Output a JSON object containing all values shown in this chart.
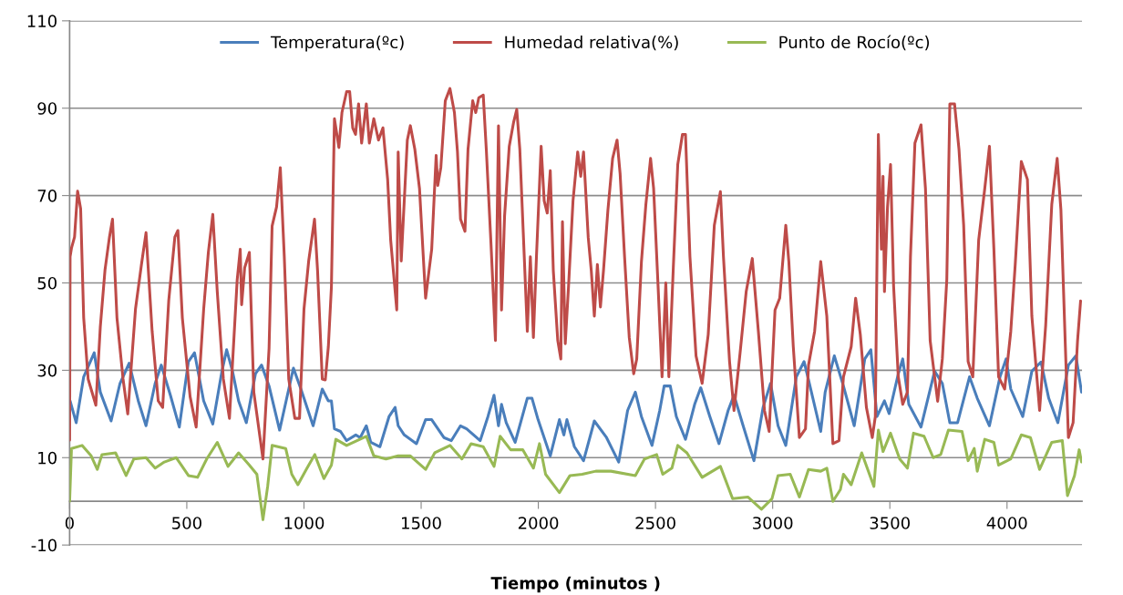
{
  "chart_data": {
    "type": "line",
    "xlabel": "Tiempo (minutos )",
    "xlim": [
      0,
      4320
    ],
    "xticks": [
      0,
      500,
      1000,
      1500,
      2000,
      2500,
      3000,
      3500,
      4000
    ],
    "ylim": [
      -10,
      110
    ],
    "yticks": [
      -10,
      10,
      30,
      50,
      70,
      90,
      110
    ],
    "grid": "y",
    "legend": "top",
    "marker": "none",
    "line_style": "solid",
    "series": [
      {
        "name": "Temperatura(ºc)",
        "color": "#4a7ebb",
        "x": [
          2,
          28,
          60,
          105,
          131,
          177,
          215,
          254,
          293,
          326,
          365,
          391,
          430,
          468,
          507,
          533,
          572,
          611,
          650,
          670,
          695,
          721,
          754,
          793,
          819,
          851,
          896,
          955,
          987,
          1039,
          1078,
          1104,
          1117,
          1130,
          1156,
          1182,
          1221,
          1240,
          1266,
          1285,
          1324,
          1363,
          1389,
          1402,
          1428,
          1480,
          1519,
          1545,
          1597,
          1629,
          1668,
          1694,
          1752,
          1785,
          1811,
          1830,
          1843,
          1863,
          1901,
          1953,
          1973,
          1999,
          2051,
          2090,
          2109,
          2122,
          2154,
          2193,
          2239,
          2291,
          2343,
          2381,
          2414,
          2440,
          2485,
          2518,
          2537,
          2563,
          2589,
          2628,
          2667,
          2693,
          2732,
          2771,
          2810,
          2835,
          2874,
          2920,
          2959,
          2991,
          3023,
          3056,
          3101,
          3134,
          3153,
          3205,
          3224,
          3263,
          3302,
          3348,
          3393,
          3419,
          3445,
          3477,
          3497,
          3536,
          3555,
          3581,
          3633,
          3691,
          3724,
          3756,
          3789,
          3840,
          3873,
          3925,
          3970,
          3996,
          4016,
          4067,
          4106,
          4145,
          4178,
          4217,
          4262,
          4294,
          4318
        ],
        "values": [
          23,
          18,
          28.5,
          34,
          25,
          18.4,
          27,
          31.6,
          23,
          17.3,
          27,
          31.2,
          24.3,
          17,
          32,
          34,
          23,
          17.7,
          29.8,
          34.7,
          29.8,
          23,
          18,
          29.2,
          31.2,
          26.4,
          16.3,
          30.5,
          25.7,
          17.3,
          25.7,
          23,
          23,
          16.6,
          16,
          13.9,
          15.2,
          14.6,
          17.3,
          13.5,
          12.5,
          19.4,
          21.5,
          17.3,
          15.2,
          13.2,
          18.7,
          18.7,
          14.6,
          13.9,
          17.3,
          16.6,
          13.9,
          19.4,
          24.3,
          17.3,
          22.2,
          18,
          13.5,
          23.6,
          23.6,
          18.7,
          10.4,
          18.7,
          15.2,
          18.7,
          12.5,
          9.3,
          18.4,
          14.6,
          9,
          20.8,
          25,
          19.4,
          12.8,
          20.8,
          26.4,
          26.4,
          19.4,
          14.2,
          22.2,
          26,
          19.4,
          13.2,
          20.8,
          24.3,
          17.3,
          9.3,
          21.5,
          27,
          17.3,
          12.8,
          28.5,
          32,
          27.8,
          16,
          25,
          33.3,
          26.4,
          17.3,
          32.6,
          34.7,
          19.4,
          23,
          20.1,
          29.2,
          32.6,
          22.2,
          17,
          29.8,
          27,
          18,
          18,
          28.5,
          23.6,
          17.3,
          28.5,
          32.6,
          25.7,
          19.4,
          29.8,
          31.9,
          23.6,
          18,
          31.2,
          33.3,
          25
        ]
      },
      {
        "name": "Humedad relativa(%)",
        "color": "#be4b48",
        "x": [
          0,
          2,
          8,
          21,
          34,
          47,
          60,
          79,
          112,
          131,
          151,
          170,
          183,
          202,
          228,
          248,
          281,
          306,
          326,
          352,
          378,
          397,
          423,
          449,
          462,
          481,
          514,
          540,
          572,
          592,
          611,
          630,
          656,
          682,
          715,
          728,
          734,
          747,
          767,
          786,
          825,
          851,
          864,
          883,
          899,
          916,
          935,
          961,
          981,
          1000,
          1020,
          1045,
          1058,
          1078,
          1091,
          1104,
          1117,
          1130,
          1149,
          1162,
          1182,
          1195,
          1208,
          1220,
          1233,
          1246,
          1266,
          1279,
          1298,
          1318,
          1337,
          1357,
          1370,
          1396,
          1402,
          1415,
          1441,
          1454,
          1473,
          1493,
          1519,
          1545,
          1564,
          1571,
          1584,
          1603,
          1623,
          1642,
          1655,
          1668,
          1687,
          1700,
          1720,
          1733,
          1746,
          1765,
          1778,
          1798,
          1817,
          1830,
          1843,
          1856,
          1876,
          1895,
          1908,
          1921,
          1940,
          1953,
          1966,
          1979,
          1992,
          2012,
          2025,
          2038,
          2051,
          2064,
          2083,
          2096,
          2103,
          2115,
          2129,
          2148,
          2168,
          2181,
          2193,
          2213,
          2226,
          2239,
          2252,
          2265,
          2278,
          2297,
          2317,
          2336,
          2349,
          2368,
          2388,
          2407,
          2420,
          2440,
          2459,
          2479,
          2492,
          2511,
          2528,
          2544,
          2557,
          2576,
          2595,
          2615,
          2628,
          2647,
          2673,
          2699,
          2725,
          2751,
          2777,
          2790,
          2816,
          2835,
          2861,
          2887,
          2913,
          2939,
          2965,
          2985,
          3010,
          3030,
          3056,
          3069,
          3088,
          3114,
          3140,
          3153,
          3179,
          3205,
          3231,
          3257,
          3283,
          3302,
          3335,
          3354,
          3374,
          3400,
          3425,
          3438,
          3451,
          3464,
          3471,
          3477,
          3490,
          3503,
          3516,
          3536,
          3555,
          3575,
          3588,
          3607,
          3633,
          3652,
          3672,
          3704,
          3724,
          3743,
          3756,
          3776,
          3795,
          3815,
          3834,
          3854,
          3879,
          3905,
          3925,
          3944,
          3964,
          3990,
          4016,
          4035,
          4061,
          4087,
          4106,
          4139,
          4165,
          4191,
          4214,
          4230,
          4249,
          4262,
          4282,
          4301,
          4314
        ],
        "values": [
          14,
          56,
          58,
          60.5,
          71,
          67,
          42,
          28,
          22,
          40,
          53,
          60.5,
          64.6,
          42,
          28,
          20,
          44,
          54,
          61.5,
          39,
          23,
          21.5,
          46,
          60.5,
          62,
          42,
          24,
          17,
          44,
          57,
          65.7,
          48,
          28,
          19,
          50.7,
          57.7,
          45,
          53.5,
          57,
          25,
          9.7,
          35,
          63,
          67.4,
          76.4,
          56,
          28,
          19,
          19,
          44,
          55,
          64.6,
          52.8,
          28,
          27.8,
          35.4,
          49,
          87.6,
          81,
          89,
          93.8,
          93.8,
          85.5,
          84,
          91,
          82,
          91,
          82,
          87.6,
          82.7,
          85.5,
          73.7,
          59.8,
          43.8,
          80,
          55,
          82.7,
          86,
          80.6,
          71.6,
          46.5,
          57.7,
          79.2,
          72.3,
          76.4,
          91.7,
          94.5,
          89,
          80,
          64.6,
          61.8,
          80.6,
          91.7,
          89,
          92.4,
          93,
          80.6,
          59,
          36.8,
          86,
          43.8,
          65.3,
          81.3,
          86.9,
          89.7,
          80.6,
          56,
          38.9,
          56,
          37.5,
          56,
          81.3,
          68.8,
          66,
          75.7,
          52.8,
          36.8,
          32.6,
          64,
          36.1,
          49.3,
          68.8,
          80,
          74.4,
          80,
          60.4,
          52.8,
          42.4,
          54.2,
          44.5,
          52.8,
          66.7,
          78.5,
          82.7,
          75,
          56,
          37.5,
          29.2,
          32.6,
          54.9,
          68,
          78.5,
          71.6,
          49.3,
          28.5,
          50,
          28.5,
          53.5,
          77.1,
          84,
          84,
          56,
          33.3,
          27,
          38.2,
          63.2,
          70.9,
          56,
          32,
          20.8,
          34,
          48,
          55.6,
          38.9,
          20.8,
          16,
          43.8,
          46.5,
          63.2,
          54.9,
          35.4,
          14.6,
          16.6,
          31.2,
          38.9,
          54.9,
          42.4,
          13.2,
          13.9,
          28.5,
          35.4,
          46.5,
          38.2,
          21.5,
          14.6,
          19.4,
          84,
          57.7,
          74.4,
          48,
          67.4,
          77.1,
          49.3,
          28.5,
          22.2,
          25,
          56,
          82,
          86.2,
          71.6,
          36.8,
          22.9,
          32.6,
          50.7,
          91,
          91,
          80.6,
          63.2,
          32,
          28.5,
          59.8,
          71.6,
          81.3,
          57.7,
          28.5,
          25.7,
          38.9,
          54.2,
          77.8,
          73.7,
          42.4,
          20.8,
          40.3,
          68,
          78.5,
          66.7,
          35.4,
          14.6,
          18,
          36.8,
          45.9
        ]
      },
      {
        "name": "Punto de Rocío(ºc)",
        "color": "#98b954",
        "x": [
          0,
          8,
          53,
          92,
          118,
          138,
          196,
          241,
          274,
          326,
          365,
          404,
          455,
          507,
          546,
          585,
          630,
          676,
          721,
          767,
          799,
          825,
          845,
          864,
          922,
          948,
          974,
          1013,
          1046,
          1085,
          1117,
          1136,
          1182,
          1266,
          1298,
          1350,
          1402,
          1454,
          1519,
          1558,
          1623,
          1674,
          1713,
          1765,
          1811,
          1837,
          1882,
          1934,
          1979,
          2005,
          2031,
          2090,
          2135,
          2187,
          2245,
          2310,
          2414,
          2453,
          2505,
          2531,
          2570,
          2595,
          2634,
          2699,
          2777,
          2829,
          2894,
          2952,
          2997,
          3023,
          3075,
          3114,
          3153,
          3205,
          3231,
          3257,
          3289,
          3302,
          3335,
          3380,
          3432,
          3451,
          3471,
          3503,
          3542,
          3575,
          3601,
          3646,
          3685,
          3717,
          3750,
          3808,
          3834,
          3860,
          3873,
          3905,
          3944,
          3964,
          4016,
          4061,
          4100,
          4139,
          4191,
          4236,
          4258,
          4288,
          4308,
          4318
        ],
        "values": [
          0,
          12.1,
          12.8,
          10.4,
          7.3,
          10.7,
          11.1,
          5.9,
          9.7,
          10,
          7.6,
          9,
          10,
          5.9,
          5.5,
          9.7,
          13.5,
          8,
          11.1,
          8.3,
          6.2,
          -4.2,
          3.4,
          12.8,
          12.1,
          6.2,
          3.8,
          7.6,
          10.7,
          5.2,
          8.3,
          14.2,
          12.8,
          14.9,
          10.4,
          9.7,
          10.4,
          10.4,
          7.3,
          11.1,
          12.8,
          9.7,
          13.2,
          12.5,
          8,
          14.9,
          11.8,
          11.8,
          7.6,
          13.2,
          6.2,
          2,
          5.9,
          6.2,
          6.9,
          6.9,
          5.9,
          9.7,
          10.7,
          6.2,
          7.6,
          12.8,
          11.1,
          5.5,
          8,
          0.6,
          1,
          -1.8,
          0.6,
          5.9,
          6.2,
          1,
          7.3,
          6.9,
          7.6,
          0,
          2.7,
          6.2,
          3.8,
          11.1,
          3.4,
          16.3,
          11.4,
          15.6,
          9.7,
          7.6,
          15.6,
          14.9,
          10,
          10.7,
          16.3,
          16,
          9.3,
          12.1,
          6.9,
          14.2,
          13.5,
          8.3,
          9.7,
          15.2,
          14.6,
          7.3,
          13.5,
          13.9,
          1.3,
          5.9,
          11.8,
          9
        ]
      }
    ]
  }
}
